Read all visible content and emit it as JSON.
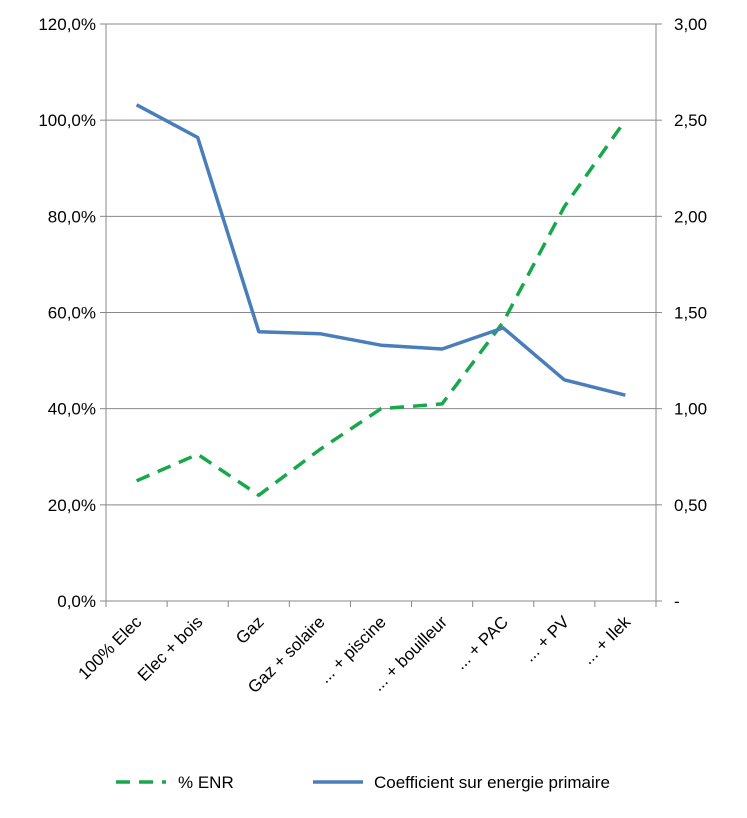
{
  "chart_data": {
    "type": "line",
    "title": "",
    "xlabel": "",
    "ylabel": "",
    "y2label": "",
    "categories": [
      "100% Elec",
      "Elec + bois",
      "Gaz",
      "Gaz + solaire",
      "... + piscine",
      "... + bouilleur",
      "... + PAC",
      "... + PV",
      "... + Ilek"
    ],
    "y_left": {
      "ylim": [
        0,
        120
      ],
      "ticks": [
        0,
        20,
        40,
        60,
        80,
        100,
        120
      ],
      "tick_labels": [
        "0,0%",
        "20,0%",
        "40,0%",
        "60,0%",
        "80,0%",
        "100,0%",
        "120,0%"
      ]
    },
    "y_right": {
      "ylim": [
        0,
        3.0
      ],
      "ticks": [
        0,
        0.5,
        1.0,
        1.5,
        2.0,
        2.5,
        3.0
      ],
      "tick_labels": [
        "-",
        "0,50",
        "1,00",
        "1,50",
        "2,00",
        "2,50",
        "3,00"
      ]
    },
    "series": [
      {
        "name": "% ENR",
        "axis": "left",
        "style": "dashed",
        "color": "#17A84C",
        "values": [
          25,
          30.5,
          22,
          31.5,
          40,
          41,
          58,
          82,
          100
        ]
      },
      {
        "name": "Coefficient sur energie primaire",
        "axis": "right",
        "style": "solid",
        "color": "#4A7EBB",
        "values": [
          2.58,
          2.41,
          1.4,
          1.39,
          1.33,
          1.31,
          1.42,
          1.15,
          1.07
        ]
      }
    ],
    "grid": "horizontal",
    "legend_placement": "bottom"
  }
}
